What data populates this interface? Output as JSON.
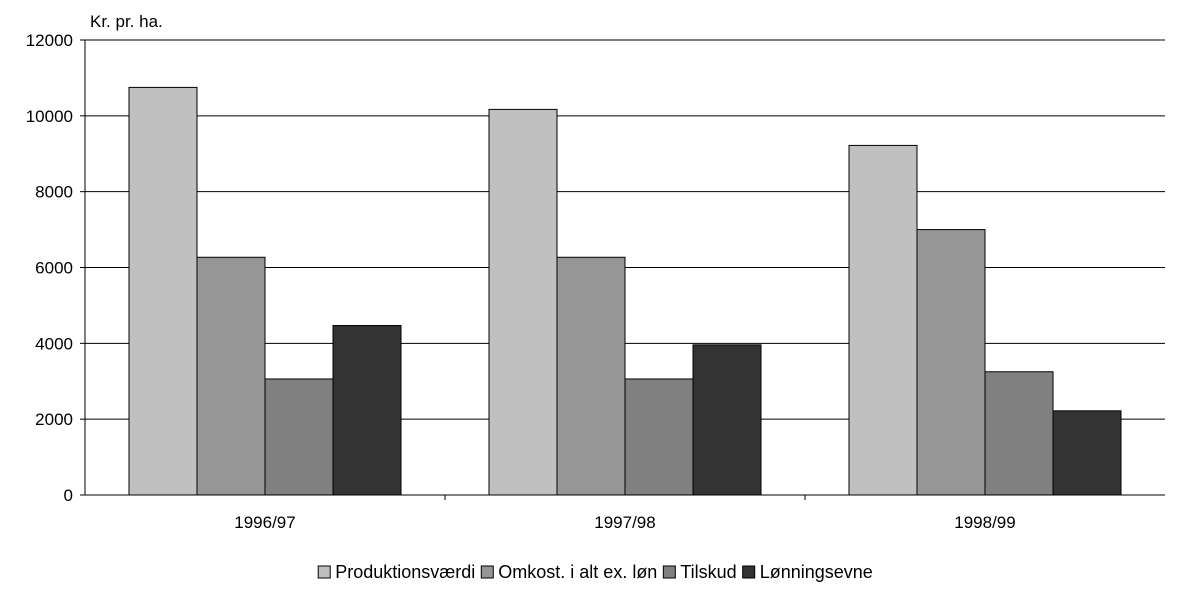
{
  "chart_data": {
    "type": "bar",
    "title": "",
    "xlabel": "",
    "ylabel": "Kr. pr. ha.",
    "ylim": [
      0,
      12000
    ],
    "yticks": [
      0,
      2000,
      4000,
      6000,
      8000,
      10000,
      12000
    ],
    "grid": true,
    "legend_position": "bottom",
    "categories": [
      "1996/97",
      "1997/98",
      "1998/99"
    ],
    "series": [
      {
        "name": "Produktionsværdi",
        "color": "#c0c0c0",
        "values": [
          10750,
          10170,
          9220
        ]
      },
      {
        "name": "Omkost. i alt ex. løn",
        "color": "#969696",
        "values": [
          6270,
          6270,
          7000
        ]
      },
      {
        "name": "Tilskud",
        "color": "#808080",
        "values": [
          3060,
          3060,
          3250
        ]
      },
      {
        "name": "Lønningsevne",
        "color": "#333333",
        "values": [
          4470,
          3960,
          2220
        ]
      }
    ]
  }
}
